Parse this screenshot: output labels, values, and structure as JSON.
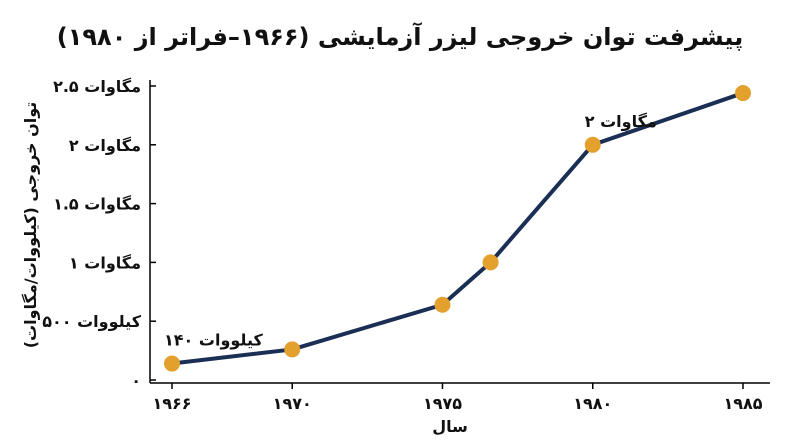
{
  "chart_data": {
    "type": "line",
    "title": "پیشرفت توان خروجی لیزر آزمایشی (۱۹۶۶–فراتر از ۱۹۸۰)",
    "xlabel": "سال",
    "ylabel": "توان خروجی (کیلووات/مگاوات)",
    "xlim": [
      1966,
      1985
    ],
    "ylim": [
      0,
      2.5
    ],
    "x_ticks": [
      {
        "value": 1966,
        "label": "۱۹۶۶"
      },
      {
        "value": 1970,
        "label": "۱۹۷۰"
      },
      {
        "value": 1975,
        "label": "۱۹۷۵"
      },
      {
        "value": 1980,
        "label": "۱۹۸۰"
      },
      {
        "value": 1985,
        "label": "۱۹۸۵"
      }
    ],
    "y_ticks": [
      {
        "value": 0,
        "label": "۰"
      },
      {
        "value": 0.5,
        "label": "۵۰۰ کیلووات"
      },
      {
        "value": 1,
        "label": "۱ مگاوات"
      },
      {
        "value": 1.5,
        "label": "۱.۵ مگاوات"
      },
      {
        "value": 2,
        "label": "۲ مگاوات"
      },
      {
        "value": 2.5,
        "label": "۲.۵ مگاوات"
      }
    ],
    "series": [
      {
        "color": "#1b2f55",
        "marker_color": "#e3a02d",
        "points": [
          {
            "x": 1966,
            "y": 0.14
          },
          {
            "x": 1970,
            "y": 0.26
          },
          {
            "x": 1975,
            "y": 0.64
          },
          {
            "x": 1976.6,
            "y": 1.0
          },
          {
            "x": 1980,
            "y": 2.0
          },
          {
            "x": 1985,
            "y": 2.44
          }
        ]
      }
    ],
    "annotations": [
      {
        "text": "۱۴۰ کیلووات",
        "x": 1966,
        "y": 0.14
      },
      {
        "text": "۲ مگاوات",
        "x": 1980,
        "y": 2.0
      }
    ],
    "grid": false,
    "legend": "none"
  }
}
